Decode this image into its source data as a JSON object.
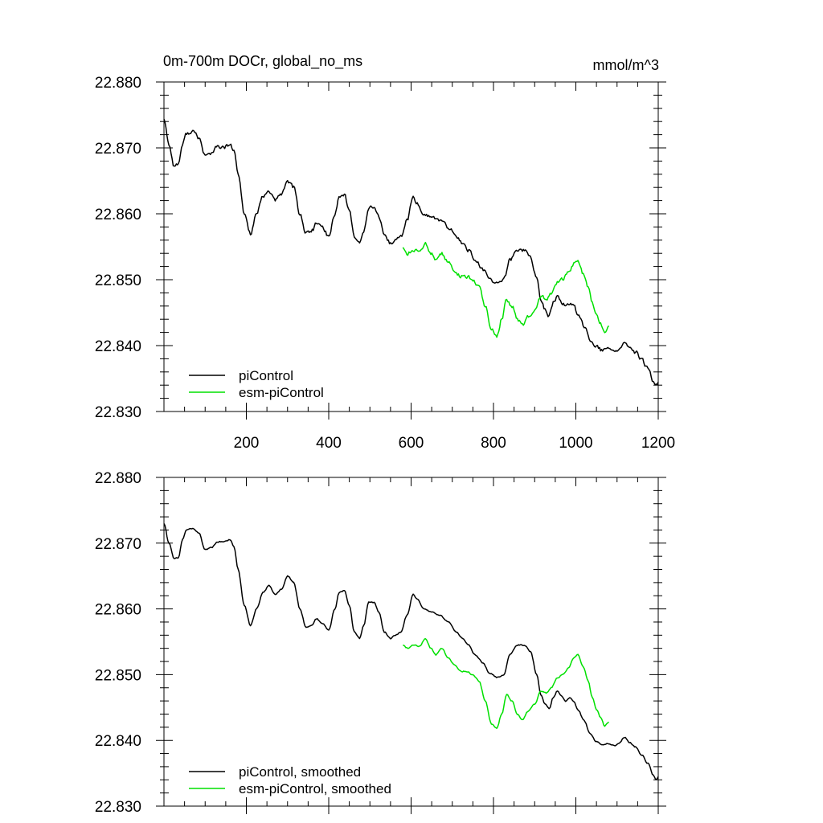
{
  "chart_data": [
    {
      "type": "line",
      "title": "0m-700m DOCr, global_no_ms",
      "units": "mmol/m^3",
      "xlim": [
        0,
        1200
      ],
      "ylim": [
        22.83,
        22.88
      ],
      "x_ticks": [
        200,
        400,
        600,
        800,
        1000,
        1200
      ],
      "x_tick_labels": [
        "200",
        "400",
        "600",
        "800",
        "1000",
        "1200"
      ],
      "y_ticks": [
        22.83,
        22.84,
        22.85,
        22.86,
        22.87,
        22.88
      ],
      "y_tick_labels": [
        "22.830",
        "22.840",
        "22.850",
        "22.860",
        "22.870",
        "22.880"
      ],
      "legend": [
        "piControl",
        "esm-piControl"
      ],
      "series": [
        {
          "name": "piControl",
          "color": "#000000",
          "noise": 0.0004,
          "points": [
            [
              0,
              22.8745
            ],
            [
              12,
              22.8705
            ],
            [
              25,
              22.8672
            ],
            [
              35,
              22.8676
            ],
            [
              45,
              22.8705
            ],
            [
              55,
              22.8722
            ],
            [
              70,
              22.8725
            ],
            [
              85,
              22.8715
            ],
            [
              100,
              22.8688
            ],
            [
              115,
              22.8692
            ],
            [
              130,
              22.8702
            ],
            [
              145,
              22.87
            ],
            [
              160,
              22.8705
            ],
            [
              170,
              22.8695
            ],
            [
              180,
              22.866
            ],
            [
              195,
              22.86
            ],
            [
              210,
              22.857
            ],
            [
              225,
              22.86
            ],
            [
              240,
              22.8625
            ],
            [
              255,
              22.8635
            ],
            [
              270,
              22.862
            ],
            [
              285,
              22.863
            ],
            [
              300,
              22.865
            ],
            [
              315,
              22.864
            ],
            [
              330,
              22.86
            ],
            [
              345,
              22.857
            ],
            [
              360,
              22.8575
            ],
            [
              370,
              22.8585
            ],
            [
              385,
              22.858
            ],
            [
              400,
              22.8565
            ],
            [
              415,
              22.86
            ],
            [
              425,
              22.8625
            ],
            [
              438,
              22.863
            ],
            [
              450,
              22.8605
            ],
            [
              462,
              22.8565
            ],
            [
              475,
              22.8555
            ],
            [
              485,
              22.8575
            ],
            [
              497,
              22.861
            ],
            [
              510,
              22.861
            ],
            [
              522,
              22.8595
            ],
            [
              535,
              22.8565
            ],
            [
              550,
              22.8555
            ],
            [
              562,
              22.856
            ],
            [
              575,
              22.8565
            ],
            [
              590,
              22.859
            ],
            [
              605,
              22.8625
            ],
            [
              615,
              22.8615
            ],
            [
              630,
              22.86
            ],
            [
              650,
              22.8595
            ],
            [
              670,
              22.859
            ],
            [
              690,
              22.858
            ],
            [
              710,
              22.8565
            ],
            [
              725,
              22.8555
            ],
            [
              740,
              22.8545
            ],
            [
              755,
              22.853
            ],
            [
              775,
              22.8515
            ],
            [
              790,
              22.85
            ],
            [
              810,
              22.8495
            ],
            [
              825,
              22.85
            ],
            [
              840,
              22.853
            ],
            [
              858,
              22.8545
            ],
            [
              875,
              22.8545
            ],
            [
              890,
              22.8535
            ],
            [
              905,
              22.85
            ],
            [
              915,
              22.847
            ],
            [
              925,
              22.8455
            ],
            [
              935,
              22.8445
            ],
            [
              945,
              22.8465
            ],
            [
              955,
              22.8475
            ],
            [
              965,
              22.8465
            ],
            [
              975,
              22.846
            ],
            [
              985,
              22.8465
            ],
            [
              995,
              22.846
            ],
            [
              1005,
              22.8445
            ],
            [
              1020,
              22.843
            ],
            [
              1035,
              22.841
            ],
            [
              1050,
              22.8398
            ],
            [
              1065,
              22.8392
            ],
            [
              1080,
              22.8395
            ],
            [
              1095,
              22.8392
            ],
            [
              1105,
              22.8395
            ],
            [
              1118,
              22.8405
            ],
            [
              1130,
              22.8395
            ],
            [
              1145,
              22.839
            ],
            [
              1160,
              22.8378
            ],
            [
              1175,
              22.8365
            ],
            [
              1188,
              22.8345
            ],
            [
              1195,
              22.834
            ],
            [
              1200,
              22.8345
            ]
          ]
        },
        {
          "name": "esm-piControl",
          "color": "#00e000",
          "noise": 0.0004,
          "points": [
            [
              580,
              22.855
            ],
            [
              592,
              22.854
            ],
            [
              605,
              22.8545
            ],
            [
              620,
              22.8543
            ],
            [
              635,
              22.8555
            ],
            [
              648,
              22.854
            ],
            [
              660,
              22.853
            ],
            [
              675,
              22.854
            ],
            [
              690,
              22.8525
            ],
            [
              705,
              22.8515
            ],
            [
              720,
              22.8505
            ],
            [
              735,
              22.8505
            ],
            [
              750,
              22.85
            ],
            [
              765,
              22.849
            ],
            [
              780,
              22.846
            ],
            [
              795,
              22.8425
            ],
            [
              808,
              22.8415
            ],
            [
              820,
              22.844
            ],
            [
              832,
              22.847
            ],
            [
              845,
              22.846
            ],
            [
              858,
              22.844
            ],
            [
              870,
              22.843
            ],
            [
              885,
              22.8445
            ],
            [
              900,
              22.8455
            ],
            [
              915,
              22.8475
            ],
            [
              928,
              22.847
            ],
            [
              940,
              22.848
            ],
            [
              955,
              22.8495
            ],
            [
              968,
              22.85
            ],
            [
              982,
              22.851
            ],
            [
              995,
              22.8525
            ],
            [
              1005,
              22.853
            ],
            [
              1018,
              22.851
            ],
            [
              1030,
              22.849
            ],
            [
              1040,
              22.8465
            ],
            [
              1050,
              22.8445
            ],
            [
              1060,
              22.8435
            ],
            [
              1070,
              22.842
            ],
            [
              1080,
              22.843
            ]
          ]
        }
      ]
    },
    {
      "type": "line",
      "xlim": [
        0,
        1200
      ],
      "ylim": [
        22.83,
        22.88
      ],
      "x_ticks": [
        200,
        400,
        600,
        800,
        1000,
        1200
      ],
      "y_ticks": [
        22.83,
        22.84,
        22.85,
        22.86,
        22.87,
        22.88
      ],
      "y_tick_labels": [
        "22.830",
        "22.840",
        "22.850",
        "22.860",
        "22.870",
        "22.880"
      ],
      "legend": [
        "piControl, smoothed",
        "esm-piControl, smoothed"
      ],
      "series": [
        {
          "name": "piControl, smoothed",
          "color": "#000000",
          "noise": 0.00012,
          "points": [
            [
              0,
              22.873
            ],
            [
              12,
              22.87
            ],
            [
              25,
              22.8676
            ],
            [
              35,
              22.8678
            ],
            [
              45,
              22.8705
            ],
            [
              55,
              22.872
            ],
            [
              70,
              22.8722
            ],
            [
              85,
              22.8715
            ],
            [
              100,
              22.869
            ],
            [
              115,
              22.8693
            ],
            [
              130,
              22.8702
            ],
            [
              145,
              22.8703
            ],
            [
              160,
              22.8705
            ],
            [
              170,
              22.8695
            ],
            [
              180,
              22.866
            ],
            [
              195,
              22.8605
            ],
            [
              210,
              22.8575
            ],
            [
              225,
              22.86
            ],
            [
              240,
              22.8625
            ],
            [
              255,
              22.8635
            ],
            [
              270,
              22.8622
            ],
            [
              285,
              22.863
            ],
            [
              300,
              22.865
            ],
            [
              315,
              22.864
            ],
            [
              330,
              22.86
            ],
            [
              345,
              22.8572
            ],
            [
              360,
              22.8575
            ],
            [
              370,
              22.8585
            ],
            [
              385,
              22.8578
            ],
            [
              400,
              22.8568
            ],
            [
              415,
              22.86
            ],
            [
              425,
              22.8625
            ],
            [
              438,
              22.8628
            ],
            [
              450,
              22.8605
            ],
            [
              462,
              22.8565
            ],
            [
              475,
              22.8555
            ],
            [
              485,
              22.8575
            ],
            [
              497,
              22.861
            ],
            [
              510,
              22.861
            ],
            [
              522,
              22.8595
            ],
            [
              535,
              22.8565
            ],
            [
              550,
              22.8555
            ],
            [
              562,
              22.856
            ],
            [
              575,
              22.8565
            ],
            [
              590,
              22.859
            ],
            [
              605,
              22.8622
            ],
            [
              615,
              22.8615
            ],
            [
              630,
              22.86
            ],
            [
              650,
              22.8595
            ],
            [
              670,
              22.859
            ],
            [
              690,
              22.858
            ],
            [
              710,
              22.8565
            ],
            [
              725,
              22.8555
            ],
            [
              740,
              22.8545
            ],
            [
              755,
              22.853
            ],
            [
              775,
              22.8518
            ],
            [
              790,
              22.8502
            ],
            [
              810,
              22.8496
            ],
            [
              825,
              22.85
            ],
            [
              840,
              22.853
            ],
            [
              858,
              22.8545
            ],
            [
              875,
              22.8545
            ],
            [
              890,
              22.8535
            ],
            [
              905,
              22.85
            ],
            [
              915,
              22.847
            ],
            [
              925,
              22.8455
            ],
            [
              935,
              22.8448
            ],
            [
              945,
              22.8465
            ],
            [
              955,
              22.8475
            ],
            [
              965,
              22.8467
            ],
            [
              975,
              22.846
            ],
            [
              985,
              22.8465
            ],
            [
              995,
              22.846
            ],
            [
              1005,
              22.8447
            ],
            [
              1020,
              22.843
            ],
            [
              1035,
              22.841
            ],
            [
              1050,
              22.8398
            ],
            [
              1065,
              22.8393
            ],
            [
              1080,
              22.8395
            ],
            [
              1095,
              22.8392
            ],
            [
              1105,
              22.8396
            ],
            [
              1118,
              22.8405
            ],
            [
              1130,
              22.8397
            ],
            [
              1145,
              22.839
            ],
            [
              1160,
              22.8378
            ],
            [
              1175,
              22.8365
            ],
            [
              1188,
              22.8347
            ],
            [
              1195,
              22.834
            ],
            [
              1200,
              22.8345
            ]
          ]
        },
        {
          "name": "esm-piControl, smoothed",
          "color": "#00e000",
          "noise": 0.00012,
          "points": [
            [
              580,
              22.8545
            ],
            [
              592,
              22.854
            ],
            [
              605,
              22.8545
            ],
            [
              620,
              22.8543
            ],
            [
              635,
              22.8555
            ],
            [
              648,
              22.854
            ],
            [
              660,
              22.853
            ],
            [
              675,
              22.854
            ],
            [
              690,
              22.8525
            ],
            [
              705,
              22.8515
            ],
            [
              720,
              22.8505
            ],
            [
              735,
              22.8505
            ],
            [
              750,
              22.85
            ],
            [
              765,
              22.849
            ],
            [
              780,
              22.846
            ],
            [
              795,
              22.8425
            ],
            [
              808,
              22.8418
            ],
            [
              820,
              22.844
            ],
            [
              832,
              22.847
            ],
            [
              845,
              22.846
            ],
            [
              858,
              22.844
            ],
            [
              870,
              22.8432
            ],
            [
              885,
              22.8445
            ],
            [
              900,
              22.8455
            ],
            [
              915,
              22.8475
            ],
            [
              928,
              22.8472
            ],
            [
              940,
              22.848
            ],
            [
              955,
              22.8495
            ],
            [
              968,
              22.85
            ],
            [
              982,
              22.851
            ],
            [
              995,
              22.8525
            ],
            [
              1005,
              22.853
            ],
            [
              1018,
              22.8512
            ],
            [
              1030,
              22.849
            ],
            [
              1040,
              22.8465
            ],
            [
              1050,
              22.8447
            ],
            [
              1060,
              22.8435
            ],
            [
              1070,
              22.8422
            ],
            [
              1080,
              22.8428
            ]
          ]
        }
      ]
    }
  ]
}
